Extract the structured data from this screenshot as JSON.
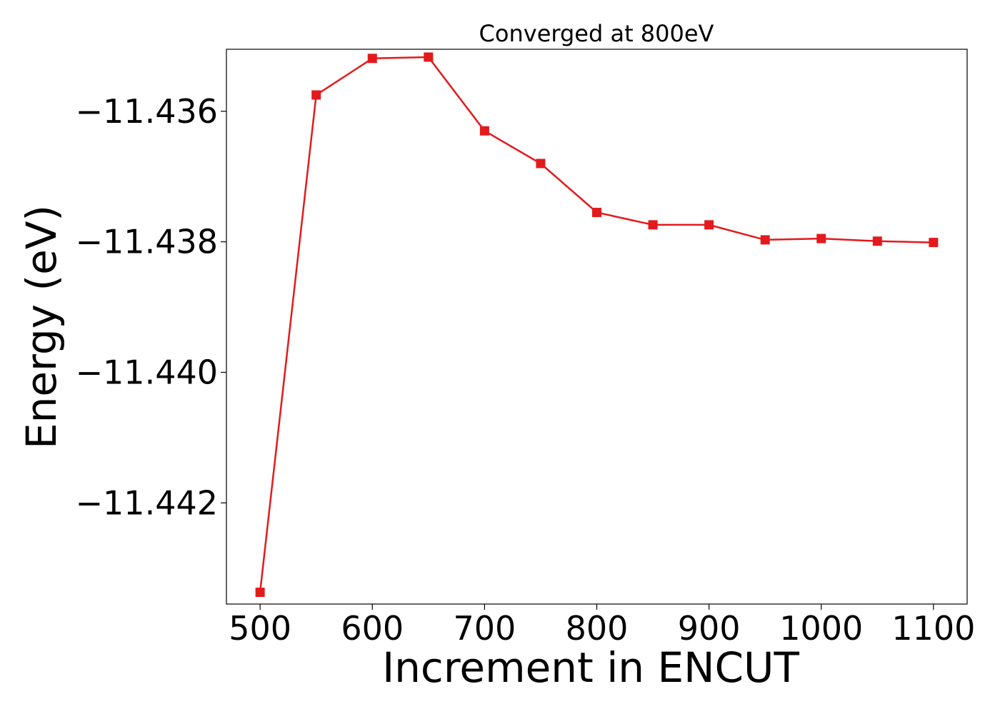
{
  "chart_data": {
    "type": "line",
    "title": "Converged at 800eV",
    "xlabel": "Increment in ENCUT",
    "ylabel": "Energy (eV)",
    "x": [
      500,
      550,
      600,
      650,
      700,
      750,
      800,
      850,
      900,
      950,
      1000,
      1050,
      1100
    ],
    "series": [
      {
        "values": [
          -11.44337,
          -11.43575,
          -11.43519,
          -11.43517,
          -11.4363,
          -11.4368,
          -11.43755,
          -11.43774,
          -11.43774,
          -11.43797,
          -11.43795,
          -11.43799,
          -11.43801
        ],
        "color": "#e31a1c",
        "marker": "square"
      }
    ],
    "xticks": [
      500,
      600,
      700,
      800,
      900,
      1000,
      1100
    ],
    "xtick_labels": [
      "500",
      "600",
      "700",
      "800",
      "900",
      "1000",
      "1100"
    ],
    "yticks": [
      -11.436,
      -11.438,
      -11.44,
      -11.442
    ],
    "ytick_labels": [
      "−11.436",
      "−11.438",
      "−11.440",
      "−11.442"
    ],
    "xlim": [
      470,
      1130
    ],
    "ylim": [
      -11.44355,
      -11.43505
    ],
    "grid": false,
    "legend": false
  }
}
